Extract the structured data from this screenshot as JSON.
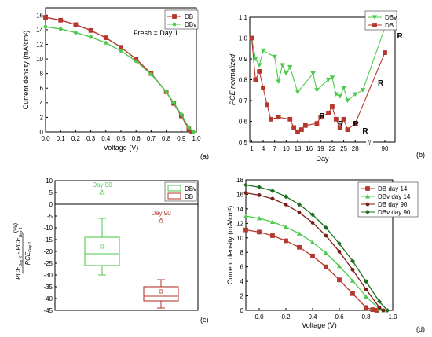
{
  "panels": {
    "a": {
      "tag": "(a)",
      "note": "Fresh = Day 1"
    },
    "b": {
      "tag": "(b)"
    },
    "c": {
      "tag": "(c)",
      "unit": "(%)"
    },
    "d": {
      "tag": "(d)"
    }
  },
  "colors": {
    "green": "#4ec94e",
    "red": "#b5372d",
    "darkred": "#7a1d16",
    "darkgreen": "#1d6f1d",
    "pink": "#f090f0"
  },
  "chart_data": [
    {
      "id": "a",
      "type": "line",
      "xlabel": "Voltage (V)",
      "ylabel": "Current density (mA/cm²)",
      "xlim": [
        0.0,
        1.0
      ],
      "ylim": [
        0,
        17
      ],
      "xticks": [
        "0.0",
        "0.1",
        "0.2",
        "0.3",
        "0.4",
        "0.5",
        "0.6",
        "0.7",
        "0.8",
        "0.9",
        "1.0"
      ],
      "yticks": [
        "0",
        "2",
        "4",
        "6",
        "8",
        "10",
        "12",
        "14",
        "16"
      ],
      "legend_position": "top-right",
      "series": [
        {
          "name": "DB",
          "marker": "square",
          "color": "#b5372d",
          "x": [
            0.0,
            0.1,
            0.2,
            0.3,
            0.4,
            0.5,
            0.6,
            0.7,
            0.8,
            0.85,
            0.9,
            0.95,
            0.97
          ],
          "y": [
            15.7,
            15.3,
            14.7,
            13.9,
            12.9,
            11.6,
            10.0,
            8.0,
            5.5,
            3.9,
            2.2,
            0.4,
            0
          ]
        },
        {
          "name": "DBv",
          "marker": "circle",
          "color": "#4ec94e",
          "x": [
            0.0,
            0.1,
            0.2,
            0.3,
            0.4,
            0.5,
            0.6,
            0.7,
            0.8,
            0.85,
            0.9,
            0.95,
            0.98
          ],
          "y": [
            14.4,
            14.1,
            13.6,
            13.0,
            12.2,
            11.1,
            9.7,
            7.9,
            5.5,
            4.0,
            2.4,
            0.6,
            0
          ]
        }
      ]
    },
    {
      "id": "b",
      "type": "line",
      "xlabel": "Day",
      "ylabel": "PCE normalized",
      "xlim": [
        0,
        30
      ],
      "ylim": [
        0.5,
        1.1
      ],
      "axis_break": "//",
      "xticks": [
        "1",
        "4",
        "7",
        "10",
        "13",
        "16",
        "19",
        "22",
        "25",
        "28",
        "90"
      ],
      "yticks": [
        "0.5",
        "0.6",
        "0.7",
        "0.8",
        "0.9",
        "1.0",
        "1.1"
      ],
      "legend_position": "top-right",
      "annotations": [
        "R",
        "R",
        "R",
        "R",
        "R",
        "R"
      ],
      "series": [
        {
          "name": "DBv",
          "marker": "triangle-down",
          "color": "#4ec94e",
          "x": [
            1,
            2,
            3,
            4,
            7,
            8,
            9,
            10,
            11,
            13,
            17,
            18,
            21,
            22,
            23,
            24,
            25,
            26,
            28,
            30,
            90
          ],
          "y": [
            1.0,
            0.9,
            0.87,
            0.94,
            0.91,
            0.79,
            0.87,
            0.83,
            0.86,
            0.74,
            0.83,
            0.75,
            0.8,
            0.81,
            0.73,
            0.72,
            0.76,
            0.7,
            0.73,
            0.75,
            1.05
          ]
        },
        {
          "name": "DB",
          "marker": "square",
          "color": "#b5372d",
          "x": [
            1,
            2,
            3,
            4,
            5,
            6,
            8,
            11,
            12,
            13,
            14,
            15,
            18,
            19,
            21,
            22,
            23,
            24,
            25,
            26,
            28,
            90
          ],
          "y": [
            1.0,
            0.8,
            0.84,
            0.76,
            0.68,
            0.61,
            0.62,
            0.61,
            0.57,
            0.55,
            0.56,
            0.58,
            0.59,
            0.62,
            0.64,
            0.67,
            0.61,
            0.57,
            0.61,
            0.56,
            0.59,
            0.93
          ]
        }
      ]
    },
    {
      "id": "c",
      "type": "box",
      "ylabel": "(PCE_Day X − PCE_Day 1) / PCE_Day 1 (%)",
      "ylim": [
        -45,
        10
      ],
      "yticks": [
        "10",
        "5",
        "0",
        "-5",
        "-10",
        "-15",
        "-20",
        "-25",
        "-30",
        "-35",
        "-40",
        "-45"
      ],
      "legend_position": "top-right",
      "annotations": [
        "Day 90",
        "Day 90"
      ],
      "series": [
        {
          "name": "DBv",
          "color": "#4ec94e",
          "whisker_low": -30,
          "q1": -26,
          "median": -21,
          "q3": -14,
          "whisker_high": -6,
          "mean": -18,
          "outlier": 5
        },
        {
          "name": "DB",
          "color": "#b5372d",
          "whisker_low": -44,
          "q1": -41,
          "median": -39,
          "q3": -35,
          "whisker_high": -32,
          "mean": -37,
          "outlier": -7
        }
      ]
    },
    {
      "id": "d",
      "type": "line",
      "xlabel": "Voltage (V)",
      "ylabel": "Current density (mA/cm²)",
      "xlim": [
        -0.1,
        1.0
      ],
      "ylim": [
        0,
        18
      ],
      "xticks": [
        "0.0",
        "0.2",
        "0.4",
        "0.6",
        "0.8",
        "1.0"
      ],
      "yticks": [
        "0",
        "2",
        "4",
        "6",
        "8",
        "10",
        "12",
        "14",
        "16",
        "18"
      ],
      "legend_position": "top-right",
      "series": [
        {
          "name": "DB day 14",
          "marker": "square",
          "color": "#b5372d",
          "x": [
            -0.1,
            0.0,
            0.1,
            0.2,
            0.3,
            0.4,
            0.5,
            0.6,
            0.7,
            0.8,
            0.85,
            0.88
          ],
          "y": [
            11.1,
            10.8,
            10.3,
            9.6,
            8.7,
            7.5,
            6.0,
            4.2,
            2.3,
            0.4,
            0.1,
            0
          ]
        },
        {
          "name": "DBv day 14",
          "marker": "triangle",
          "color": "#4ec94e",
          "x": [
            -0.1,
            0.0,
            0.1,
            0.2,
            0.3,
            0.4,
            0.5,
            0.6,
            0.7,
            0.8,
            0.9,
            0.93
          ],
          "y": [
            13.0,
            12.7,
            12.2,
            11.5,
            10.6,
            9.4,
            7.9,
            6.1,
            4.1,
            1.9,
            0.2,
            0
          ]
        },
        {
          "name": "DB day 90",
          "marker": "circle",
          "color": "#7a1d16",
          "x": [
            -0.1,
            0.0,
            0.1,
            0.2,
            0.3,
            0.4,
            0.5,
            0.6,
            0.7,
            0.8,
            0.9,
            0.93
          ],
          "y": [
            16.2,
            15.9,
            15.4,
            14.6,
            13.5,
            12.1,
            10.3,
            8.1,
            5.6,
            2.9,
            0.4,
            0
          ]
        },
        {
          "name": "DBv day 90",
          "marker": "diamond",
          "color": "#1d6f1d",
          "x": [
            -0.1,
            0.0,
            0.1,
            0.2,
            0.3,
            0.4,
            0.5,
            0.6,
            0.7,
            0.8,
            0.9,
            0.96
          ],
          "y": [
            17.3,
            17.0,
            16.5,
            15.7,
            14.6,
            13.2,
            11.4,
            9.2,
            6.8,
            4.0,
            1.2,
            0
          ]
        }
      ]
    }
  ]
}
